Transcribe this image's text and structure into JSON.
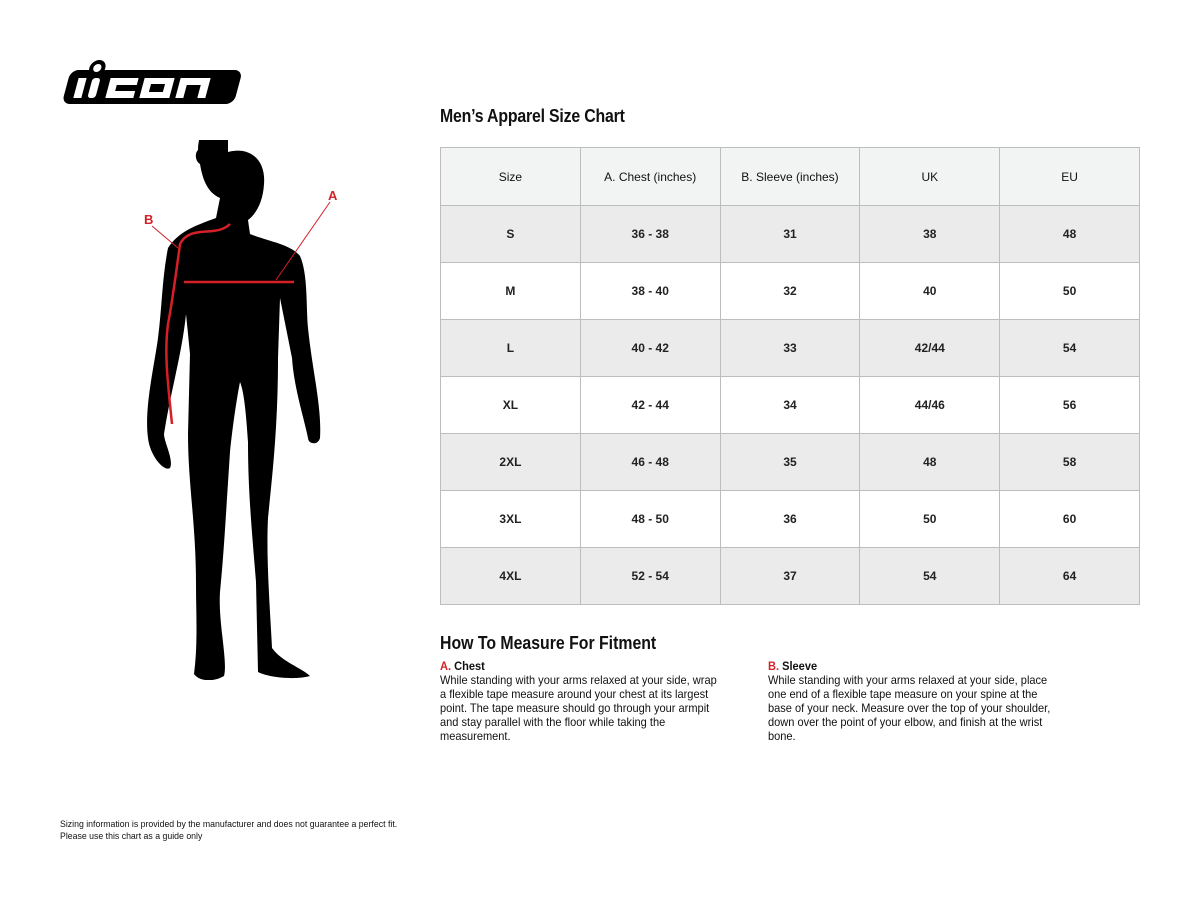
{
  "brand": {
    "logo_text": "icon"
  },
  "figure": {
    "marker_a": "A",
    "marker_b": "B",
    "accent_color": "#d52027"
  },
  "chart": {
    "title": "Men’s Apparel Size Chart",
    "headers": [
      "Size",
      "A. Chest (inches)",
      "B. Sleeve (inches)",
      "UK",
      "EU"
    ],
    "rows": [
      [
        "S",
        "36 - 38",
        "31",
        "38",
        "48"
      ],
      [
        "M",
        "38 - 40",
        "32",
        "40",
        "50"
      ],
      [
        "L",
        "40 - 42",
        "33",
        "42/44",
        "54"
      ],
      [
        "XL",
        "42 - 44",
        "34",
        "44/46",
        "56"
      ],
      [
        "2XL",
        "46 - 48",
        "35",
        "48",
        "58"
      ],
      [
        "3XL",
        "48 - 50",
        "36",
        "50",
        "60"
      ],
      [
        "4XL",
        "52 - 54",
        "37",
        "54",
        "64"
      ]
    ]
  },
  "howto": {
    "title": "How To Measure For Fitment",
    "chest": {
      "letter": "A.",
      "label": "Chest",
      "text": "While standing with your arms relaxed at your side, wrap a flexible tape measure around your chest at its largest point. The tape measure should go through your armpit and stay parallel with the floor while taking the measurement."
    },
    "sleeve": {
      "letter": "B.",
      "label": "Sleeve",
      "text": "While standing with your arms relaxed at your side, place one end of a flexible tape measure on your spine at the base of your neck. Measure over the top of your shoulder, down over the point of your elbow, and finish at the wrist bone."
    }
  },
  "footer": {
    "line1": "Sizing information is provided by the manufacturer and does not guarantee a perfect fit.",
    "line2": "Please use this chart as a guide only"
  }
}
